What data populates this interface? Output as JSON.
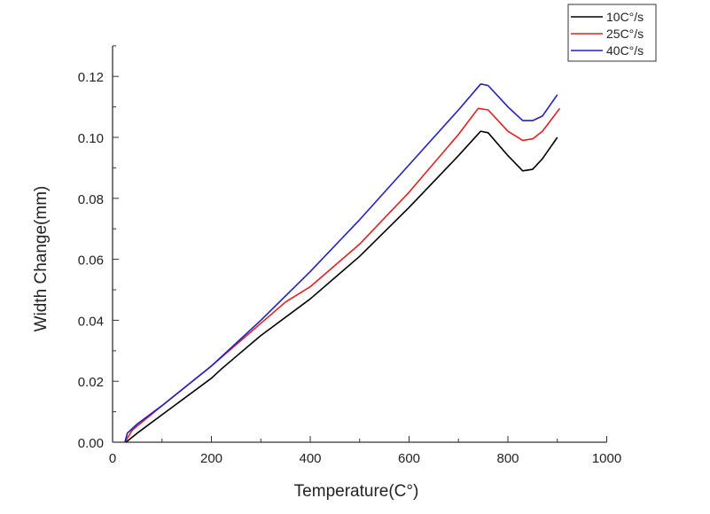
{
  "chart_data": {
    "type": "line",
    "title": "",
    "xlabel": "Temperature(C°)",
    "ylabel": "Width Change(mm)",
    "xlim": [
      0,
      1000
    ],
    "ylim": [
      0,
      0.13
    ],
    "xticks": [
      0,
      200,
      400,
      600,
      800,
      1000
    ],
    "xtick_labels": [
      "0",
      "200",
      "400",
      "600",
      "800",
      "1000"
    ],
    "yticks": [
      0,
      0.02,
      0.04,
      0.06,
      0.08,
      0.1,
      0.12
    ],
    "ytick_labels": [
      "0.00",
      "0.02",
      "0.04",
      "0.06",
      "0.08",
      "0.10",
      "0.12"
    ],
    "grid": false,
    "legend_position": "top-right",
    "series": [
      {
        "name": "10C°/s",
        "color": "#000000",
        "x": [
          27,
          50,
          100,
          200,
          220,
          300,
          400,
          500,
          600,
          700,
          745,
          760,
          800,
          830,
          850,
          870,
          900
        ],
        "y": [
          0,
          0.003,
          0.009,
          0.021,
          0.024,
          0.035,
          0.047,
          0.061,
          0.077,
          0.094,
          0.102,
          0.1015,
          0.094,
          0.089,
          0.0895,
          0.093,
          0.1
        ]
      },
      {
        "name": "25C°/s",
        "color": "#e02020",
        "x": [
          25,
          40,
          100,
          200,
          300,
          350,
          400,
          500,
          600,
          700,
          740,
          760,
          800,
          830,
          850,
          870,
          905
        ],
        "y": [
          0,
          0.004,
          0.012,
          0.025,
          0.039,
          0.046,
          0.051,
          0.065,
          0.082,
          0.101,
          0.1095,
          0.109,
          0.102,
          0.099,
          0.0995,
          0.102,
          0.1095
        ]
      },
      {
        "name": "40C°/s",
        "color": "#2020c0",
        "x": [
          25,
          30,
          50,
          100,
          200,
          300,
          400,
          500,
          600,
          700,
          745,
          760,
          800,
          830,
          850,
          870,
          900
        ],
        "y": [
          0,
          0.003,
          0.006,
          0.012,
          0.025,
          0.04,
          0.056,
          0.073,
          0.091,
          0.109,
          0.1175,
          0.117,
          0.11,
          0.1055,
          0.1055,
          0.107,
          0.114
        ]
      }
    ]
  }
}
